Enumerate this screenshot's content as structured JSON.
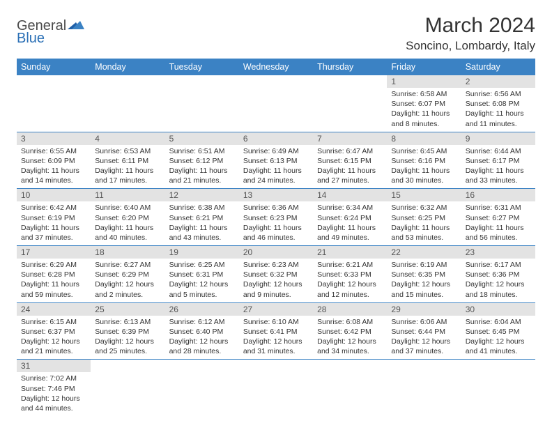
{
  "logo": {
    "general": "General",
    "blue": "Blue"
  },
  "header": {
    "title": "March 2024",
    "location": "Soncino, Lombardy, Italy"
  },
  "colors": {
    "header_bg": "#3b82c4",
    "header_text": "#ffffff",
    "daynum_bg": "#e3e3e3",
    "daynum_text": "#555555",
    "border": "#3b82c4",
    "body_text": "#333333",
    "logo_gray": "#4a4a4a",
    "logo_blue": "#2a6fb5"
  },
  "weekdays": [
    "Sunday",
    "Monday",
    "Tuesday",
    "Wednesday",
    "Thursday",
    "Friday",
    "Saturday"
  ],
  "leading_blanks": 5,
  "days": [
    {
      "n": 1,
      "sunrise": "6:58 AM",
      "sunset": "6:07 PM",
      "daylight": "11 hours and 8 minutes."
    },
    {
      "n": 2,
      "sunrise": "6:56 AM",
      "sunset": "6:08 PM",
      "daylight": "11 hours and 11 minutes."
    },
    {
      "n": 3,
      "sunrise": "6:55 AM",
      "sunset": "6:09 PM",
      "daylight": "11 hours and 14 minutes."
    },
    {
      "n": 4,
      "sunrise": "6:53 AM",
      "sunset": "6:11 PM",
      "daylight": "11 hours and 17 minutes."
    },
    {
      "n": 5,
      "sunrise": "6:51 AM",
      "sunset": "6:12 PM",
      "daylight": "11 hours and 21 minutes."
    },
    {
      "n": 6,
      "sunrise": "6:49 AM",
      "sunset": "6:13 PM",
      "daylight": "11 hours and 24 minutes."
    },
    {
      "n": 7,
      "sunrise": "6:47 AM",
      "sunset": "6:15 PM",
      "daylight": "11 hours and 27 minutes."
    },
    {
      "n": 8,
      "sunrise": "6:45 AM",
      "sunset": "6:16 PM",
      "daylight": "11 hours and 30 minutes."
    },
    {
      "n": 9,
      "sunrise": "6:44 AM",
      "sunset": "6:17 PM",
      "daylight": "11 hours and 33 minutes."
    },
    {
      "n": 10,
      "sunrise": "6:42 AM",
      "sunset": "6:19 PM",
      "daylight": "11 hours and 37 minutes."
    },
    {
      "n": 11,
      "sunrise": "6:40 AM",
      "sunset": "6:20 PM",
      "daylight": "11 hours and 40 minutes."
    },
    {
      "n": 12,
      "sunrise": "6:38 AM",
      "sunset": "6:21 PM",
      "daylight": "11 hours and 43 minutes."
    },
    {
      "n": 13,
      "sunrise": "6:36 AM",
      "sunset": "6:23 PM",
      "daylight": "11 hours and 46 minutes."
    },
    {
      "n": 14,
      "sunrise": "6:34 AM",
      "sunset": "6:24 PM",
      "daylight": "11 hours and 49 minutes."
    },
    {
      "n": 15,
      "sunrise": "6:32 AM",
      "sunset": "6:25 PM",
      "daylight": "11 hours and 53 minutes."
    },
    {
      "n": 16,
      "sunrise": "6:31 AM",
      "sunset": "6:27 PM",
      "daylight": "11 hours and 56 minutes."
    },
    {
      "n": 17,
      "sunrise": "6:29 AM",
      "sunset": "6:28 PM",
      "daylight": "11 hours and 59 minutes."
    },
    {
      "n": 18,
      "sunrise": "6:27 AM",
      "sunset": "6:29 PM",
      "daylight": "12 hours and 2 minutes."
    },
    {
      "n": 19,
      "sunrise": "6:25 AM",
      "sunset": "6:31 PM",
      "daylight": "12 hours and 5 minutes."
    },
    {
      "n": 20,
      "sunrise": "6:23 AM",
      "sunset": "6:32 PM",
      "daylight": "12 hours and 9 minutes."
    },
    {
      "n": 21,
      "sunrise": "6:21 AM",
      "sunset": "6:33 PM",
      "daylight": "12 hours and 12 minutes."
    },
    {
      "n": 22,
      "sunrise": "6:19 AM",
      "sunset": "6:35 PM",
      "daylight": "12 hours and 15 minutes."
    },
    {
      "n": 23,
      "sunrise": "6:17 AM",
      "sunset": "6:36 PM",
      "daylight": "12 hours and 18 minutes."
    },
    {
      "n": 24,
      "sunrise": "6:15 AM",
      "sunset": "6:37 PM",
      "daylight": "12 hours and 21 minutes."
    },
    {
      "n": 25,
      "sunrise": "6:13 AM",
      "sunset": "6:39 PM",
      "daylight": "12 hours and 25 minutes."
    },
    {
      "n": 26,
      "sunrise": "6:12 AM",
      "sunset": "6:40 PM",
      "daylight": "12 hours and 28 minutes."
    },
    {
      "n": 27,
      "sunrise": "6:10 AM",
      "sunset": "6:41 PM",
      "daylight": "12 hours and 31 minutes."
    },
    {
      "n": 28,
      "sunrise": "6:08 AM",
      "sunset": "6:42 PM",
      "daylight": "12 hours and 34 minutes."
    },
    {
      "n": 29,
      "sunrise": "6:06 AM",
      "sunset": "6:44 PM",
      "daylight": "12 hours and 37 minutes."
    },
    {
      "n": 30,
      "sunrise": "6:04 AM",
      "sunset": "6:45 PM",
      "daylight": "12 hours and 41 minutes."
    },
    {
      "n": 31,
      "sunrise": "7:02 AM",
      "sunset": "7:46 PM",
      "daylight": "12 hours and 44 minutes."
    }
  ],
  "labels": {
    "sunrise": "Sunrise:",
    "sunset": "Sunset:",
    "daylight": "Daylight:"
  }
}
